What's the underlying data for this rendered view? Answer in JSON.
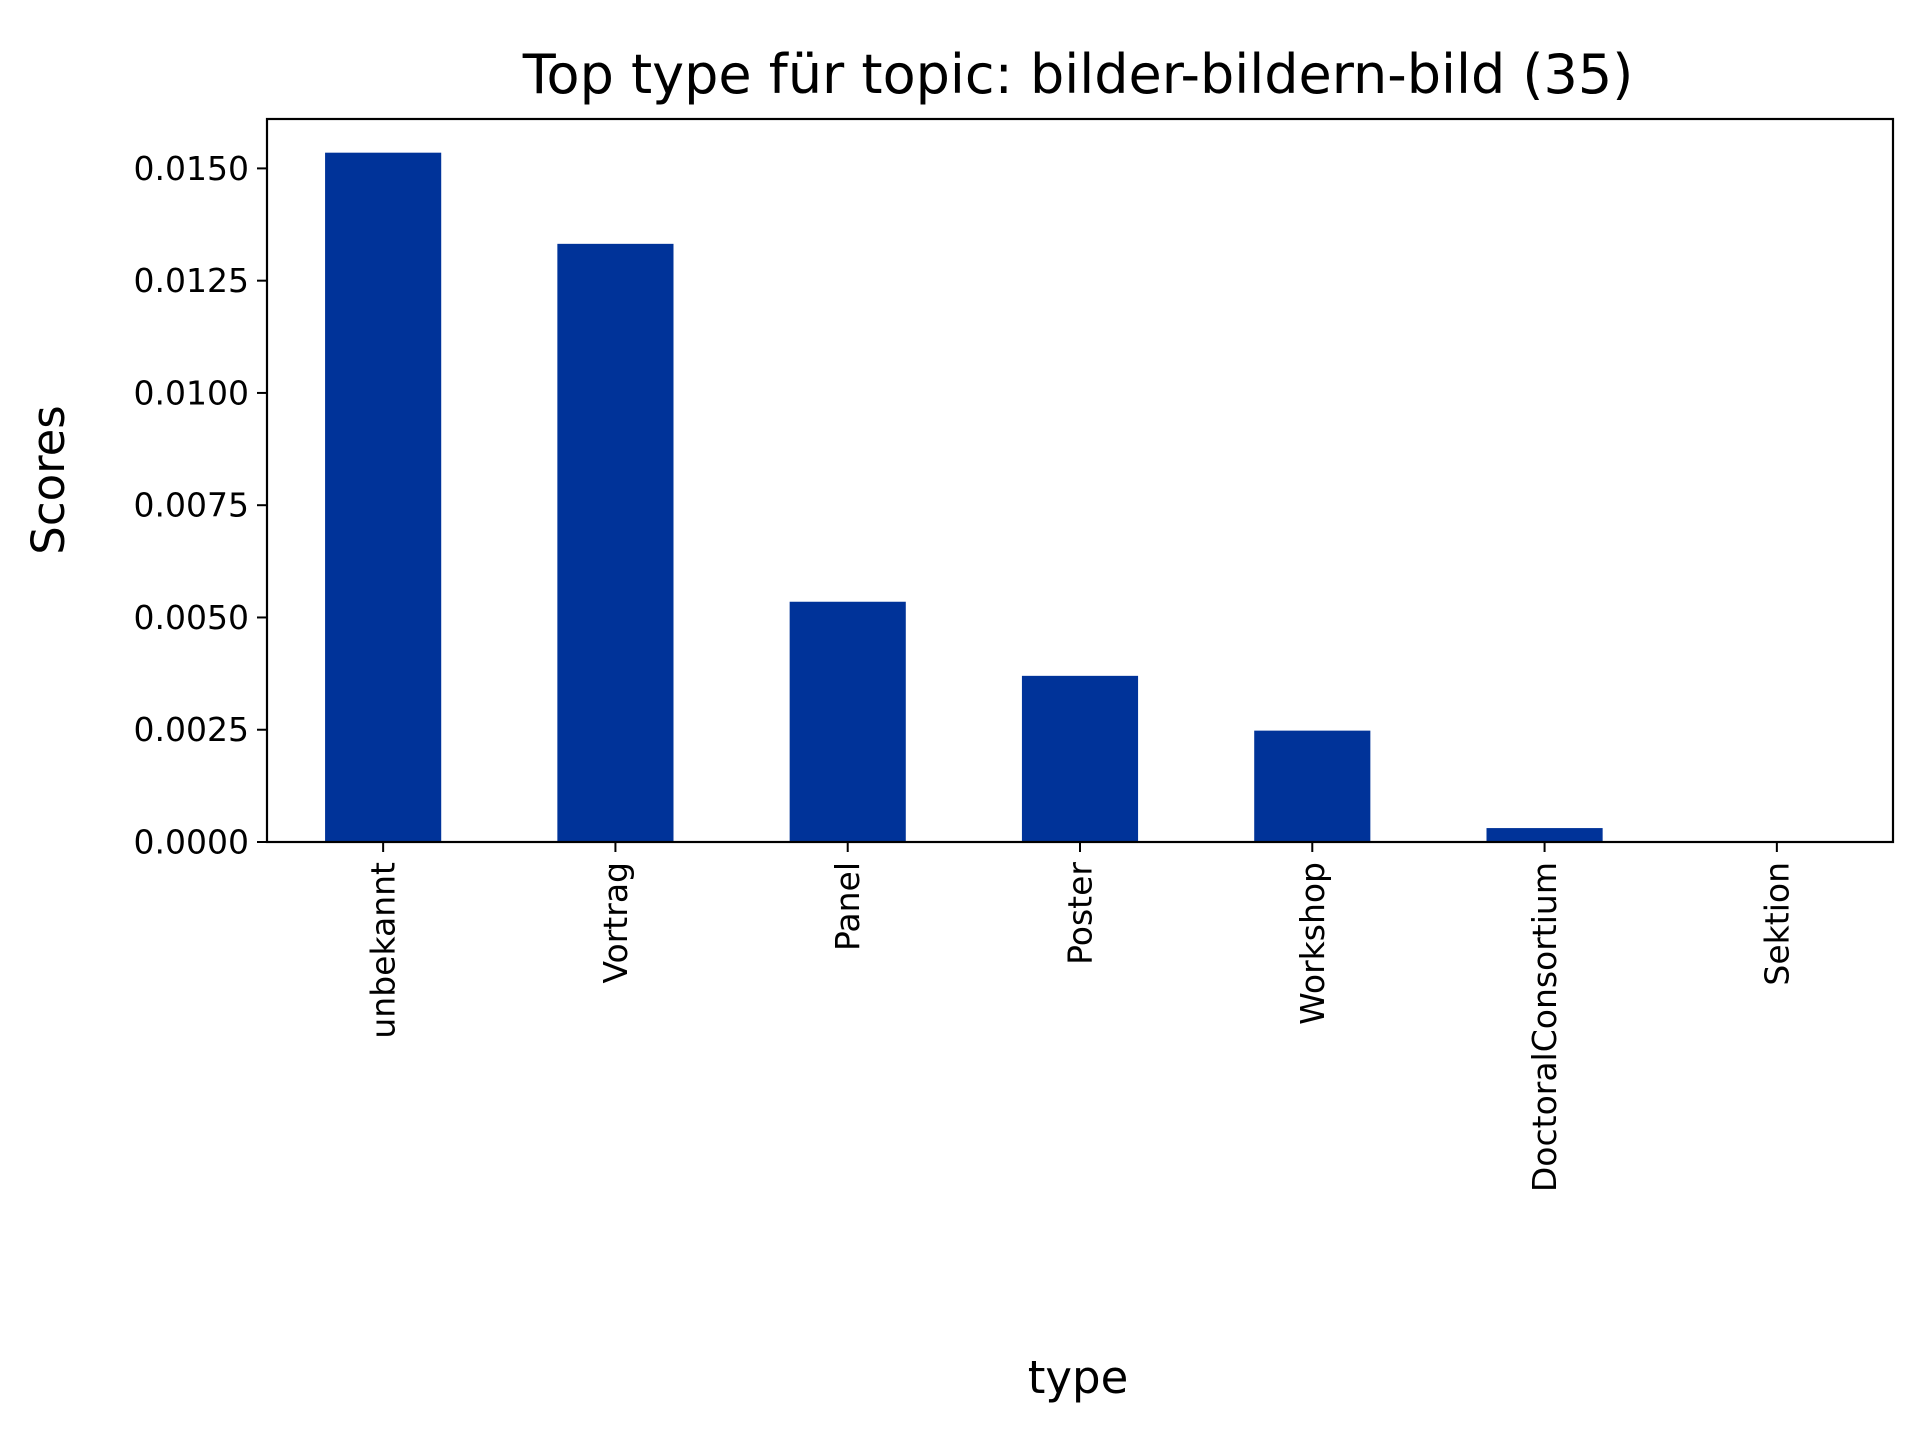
{
  "chart_data": {
    "type": "bar",
    "title": "Top type für topic: bilder-bildern-bild (35)",
    "xlabel": "type",
    "ylabel": "Scores",
    "categories": [
      "unbekannt",
      "Vortrag",
      "Panel",
      "Poster",
      "Workshop",
      "DoctoralConsortium",
      "Sektion"
    ],
    "values": [
      0.01535,
      0.01332,
      0.00535,
      0.0037,
      0.00248,
      0.00031,
      0.0
    ],
    "ylim": [
      0,
      0.0161
    ],
    "yticks": [
      "0.0000",
      "0.0025",
      "0.0050",
      "0.0075",
      "0.0100",
      "0.0125",
      "0.0150"
    ],
    "grid": false,
    "legend": "none",
    "bar_color": "#003399",
    "axis_color": "#000000"
  }
}
